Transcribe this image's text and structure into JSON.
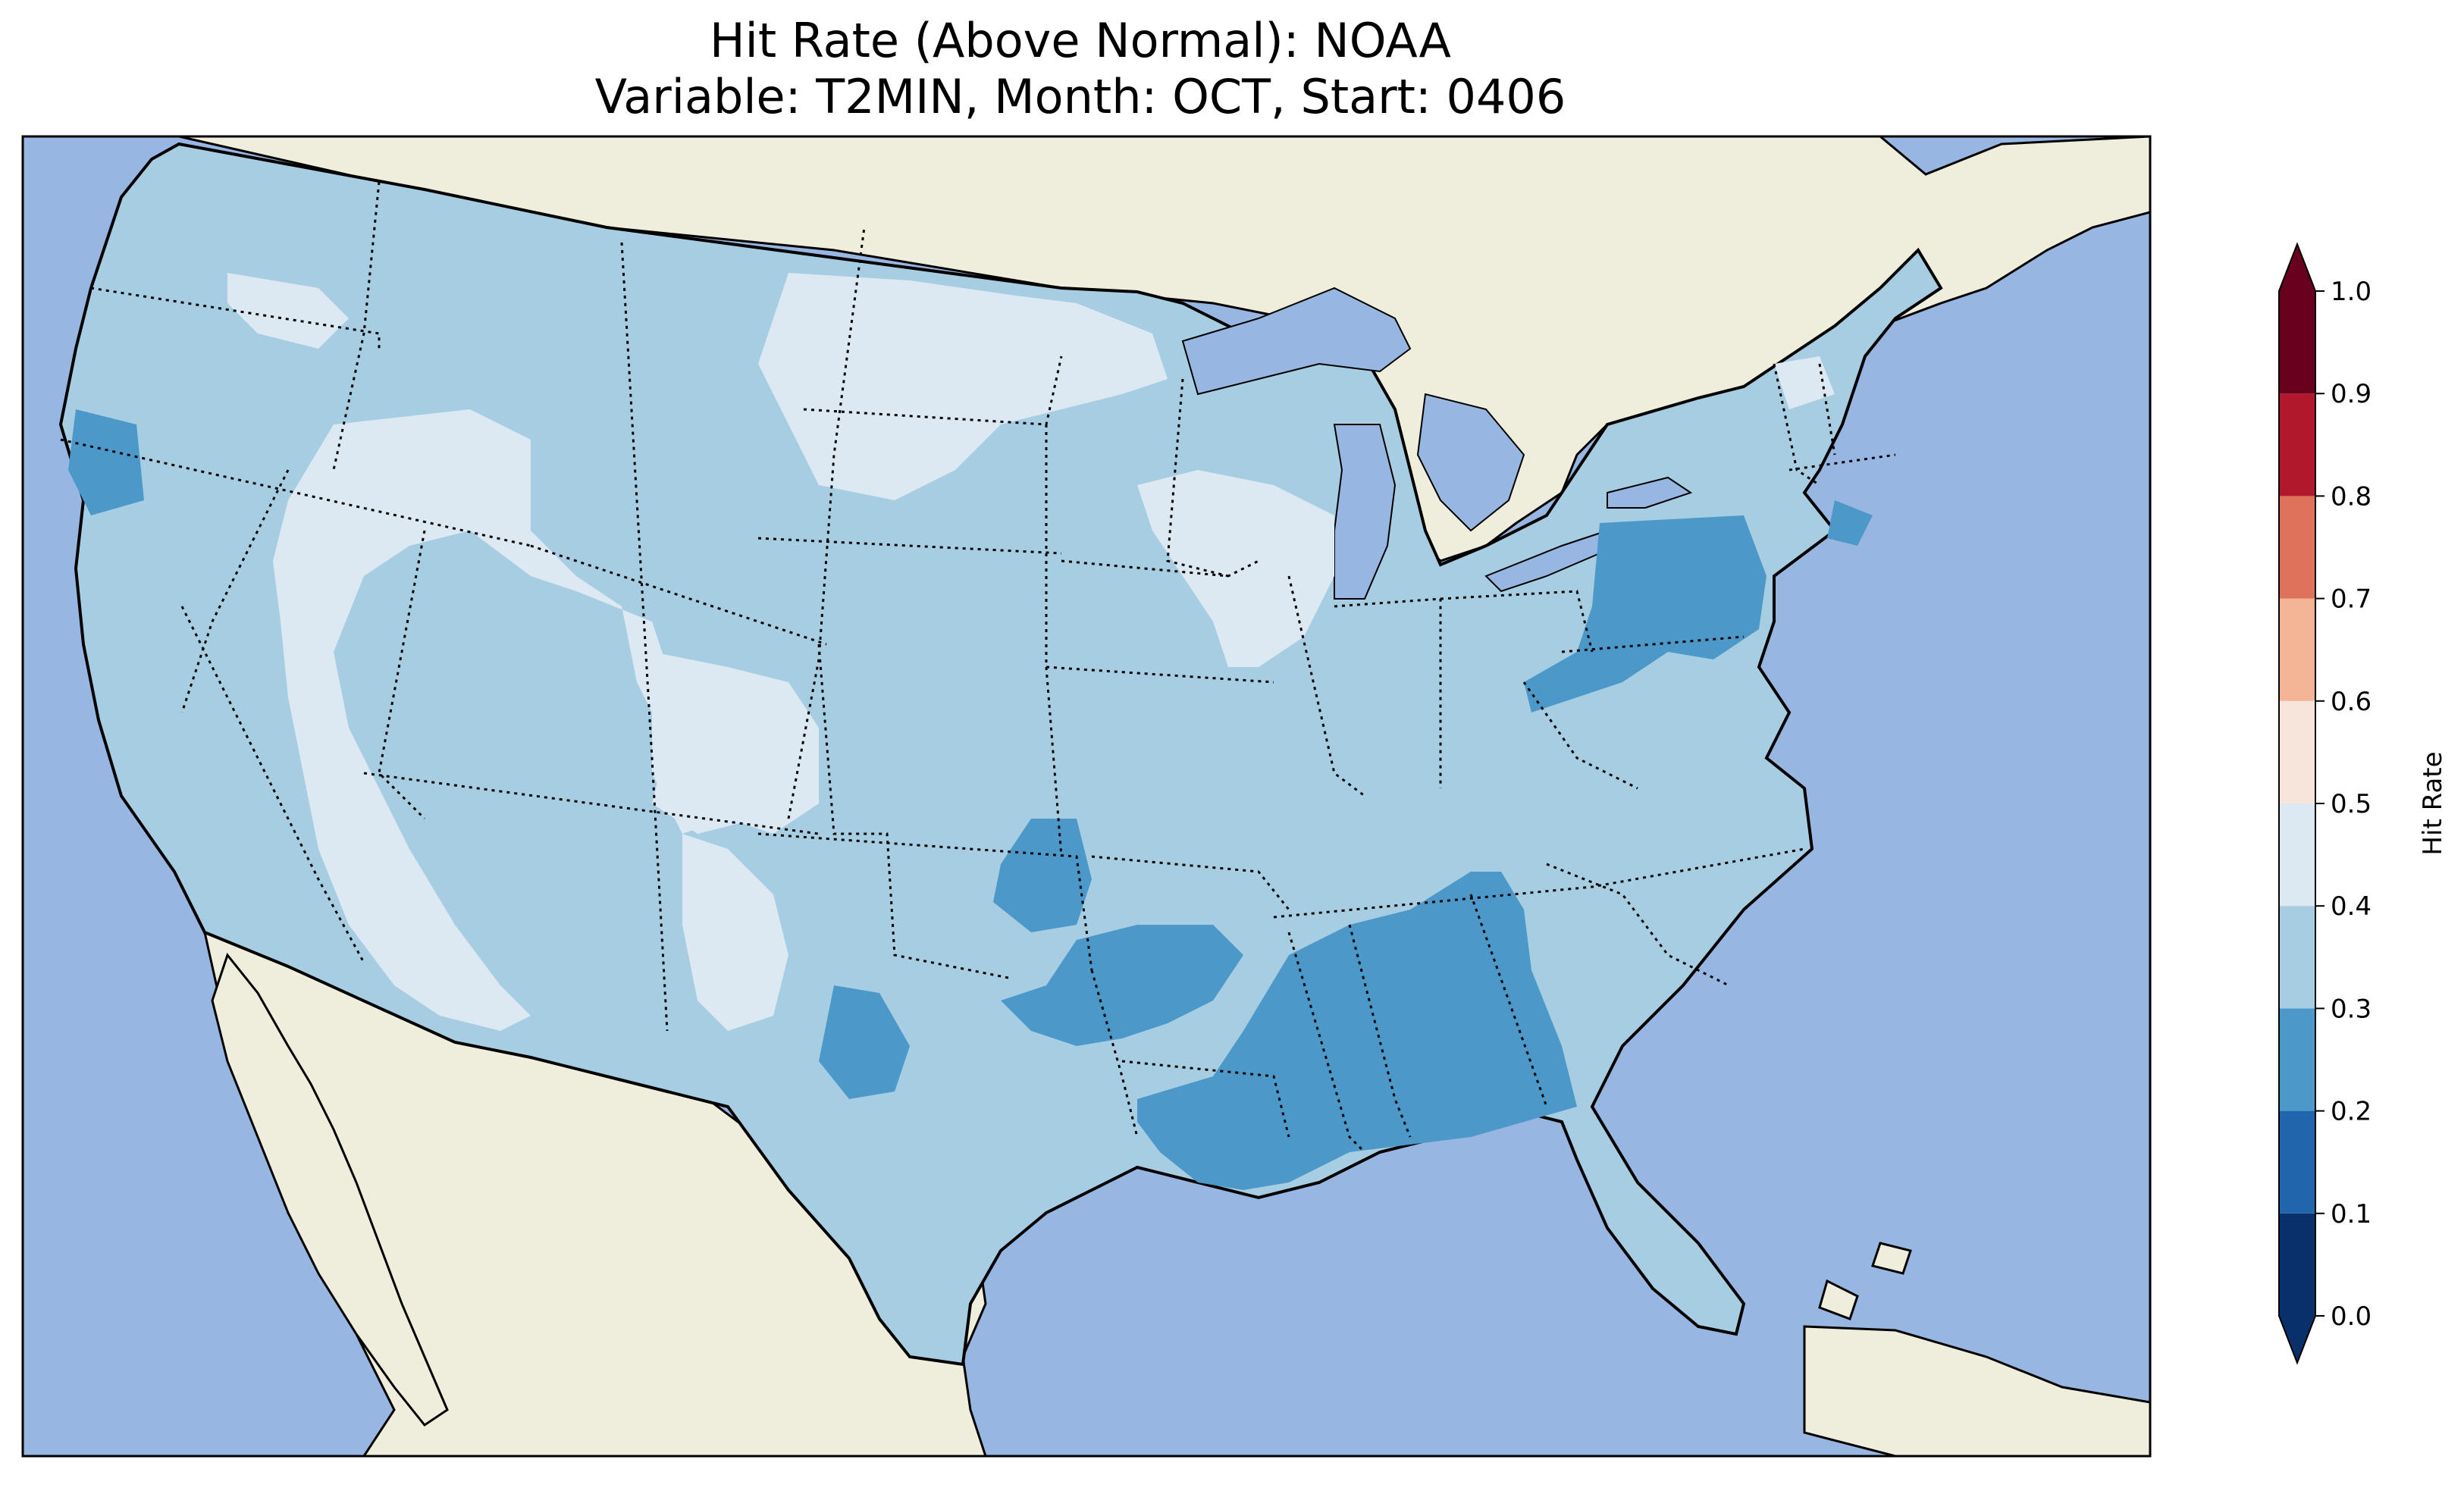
{
  "title_line1": "Hit Rate (Above Normal): NOAA",
  "title_line2": "Variable: T2MIN, Month: OCT, Start: 0406",
  "colorbar": {
    "label": "Hit Rate",
    "ticks": [
      "0.0",
      "0.1",
      "0.2",
      "0.3",
      "0.4",
      "0.5",
      "0.6",
      "0.7",
      "0.8",
      "0.9",
      "1.0"
    ],
    "bins": [
      {
        "range": [
          0.0,
          0.1
        ],
        "color": "#08306b"
      },
      {
        "range": [
          0.1,
          0.2
        ],
        "color": "#2166ac"
      },
      {
        "range": [
          0.2,
          0.3
        ],
        "color": "#4b98c9"
      },
      {
        "range": [
          0.3,
          0.4
        ],
        "color": "#a6cde2"
      },
      {
        "range": [
          0.4,
          0.5
        ],
        "color": "#dce9f2"
      },
      {
        "range": [
          0.5,
          0.6
        ],
        "color": "#f7e4da"
      },
      {
        "range": [
          0.6,
          0.7
        ],
        "color": "#f4b596"
      },
      {
        "range": [
          0.7,
          0.8
        ],
        "color": "#de725b"
      },
      {
        "range": [
          0.8,
          0.9
        ],
        "color": "#b2182b"
      },
      {
        "range": [
          0.9,
          1.0
        ],
        "color": "#67001f"
      }
    ],
    "extend": "both"
  },
  "map": {
    "projection": "Lambert conformal, contiguous United States",
    "variable": "T2MIN",
    "month": "OCT",
    "start": "0406",
    "colors": {
      "ocean": "#97b6e1",
      "land": "#efeddb",
      "border": "#000000"
    },
    "regions": [
      {
        "name": "west-coast-and-great-basin",
        "hit_rate_bin": "0.3-0.4"
      },
      {
        "name": "great-basin-core",
        "hit_rate_bin": "0.4-0.5"
      },
      {
        "name": "colorado-plateau",
        "hit_rate_bin": "0.4-0.5"
      },
      {
        "name": "arizona-new-mexico-west",
        "hit_rate_bin": "0.4-0.5"
      },
      {
        "name": "northern-great-plains",
        "hit_rate_bin": "0.4-0.5"
      },
      {
        "name": "north-coast-oregon",
        "hit_rate_bin": "0.2-0.3"
      },
      {
        "name": "central-and-southern-plains",
        "hit_rate_bin": "0.3-0.4"
      },
      {
        "name": "midwest",
        "hit_rate_bin": "0.3-0.4"
      },
      {
        "name": "great-lakes-pocket",
        "hit_rate_bin": "0.4-0.5"
      },
      {
        "name": "pennsylvania-maryland",
        "hit_rate_bin": "0.2-0.3"
      },
      {
        "name": "oklahoma-texas-north",
        "hit_rate_bin": "0.2-0.3"
      },
      {
        "name": "arkansas-louisiana-gulf",
        "hit_rate_bin": "0.2-0.3"
      },
      {
        "name": "mississippi-alabama-georgia",
        "hit_rate_bin": "0.2-0.3"
      },
      {
        "name": "west-texas-pocket",
        "hit_rate_bin": "0.2-0.3"
      },
      {
        "name": "southeast-atlantic",
        "hit_rate_bin": "0.3-0.4"
      },
      {
        "name": "florida-peninsula",
        "hit_rate_bin": "0.3-0.4"
      },
      {
        "name": "new-england",
        "hit_rate_bin": "0.3-0.4"
      }
    ]
  }
}
